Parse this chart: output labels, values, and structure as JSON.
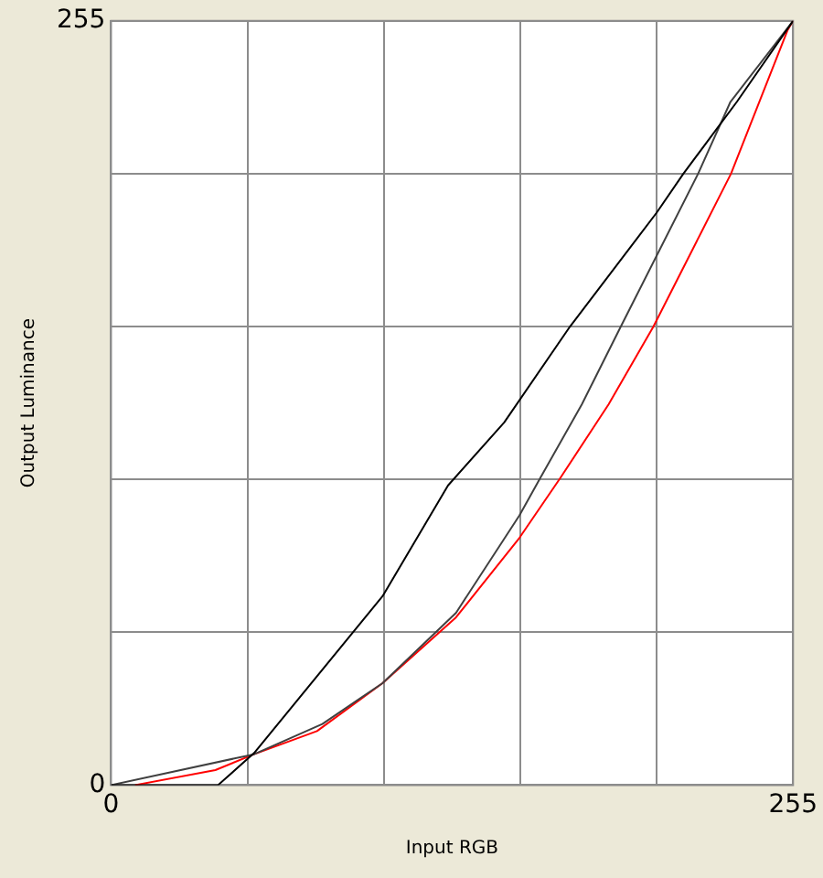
{
  "chart_data": {
    "type": "line",
    "xlabel": "Input RGB",
    "ylabel": "Output Luminance",
    "series": [
      {
        "color": "#000000",
        "x": [
          0,
          40,
          53.5,
          101.5,
          126,
          147,
          171.6,
          204,
          214,
          234,
          255
        ],
        "values": [
          0,
          0,
          10.7,
          63,
          100,
          121,
          153,
          191,
          204,
          228,
          255
        ]
      },
      {
        "color": "#404040",
        "x": [
          0,
          53.5,
          79,
          101.5,
          129,
          152.7,
          160.5,
          176,
          190.6,
          219.5,
          231.6,
          255
        ],
        "values": [
          0,
          10.3,
          20.4,
          34,
          57.5,
          90,
          102.5,
          127,
          153,
          204,
          228,
          255
        ]
      },
      {
        "color": "#ff0000",
        "x": [
          9,
          39,
          53.5,
          77,
          101.5,
          129,
          152.7,
          168,
          186,
          202.8,
          231.8,
          253,
          255
        ],
        "values": [
          0,
          5,
          10.3,
          18,
          34,
          56,
          82.5,
          102.5,
          127,
          153,
          204,
          252,
          255
        ]
      }
    ],
    "xlim": [
      0,
      255
    ],
    "ylim": [
      0,
      255
    ],
    "xticks": [
      0,
      {
        "value": 51,
        "label": null
      },
      {
        "value": 102,
        "label": null
      },
      {
        "value": 153,
        "label": null
      },
      {
        "value": 204,
        "label": null
      },
      255
    ],
    "yticks": [
      0,
      {
        "value": 51,
        "label": null
      },
      {
        "value": 102,
        "label": null
      },
      {
        "value": 153,
        "label": null
      },
      {
        "value": 204,
        "label": null
      },
      255
    ],
    "grid": true,
    "legend": false,
    "marker": "none",
    "line_style": "solid"
  }
}
